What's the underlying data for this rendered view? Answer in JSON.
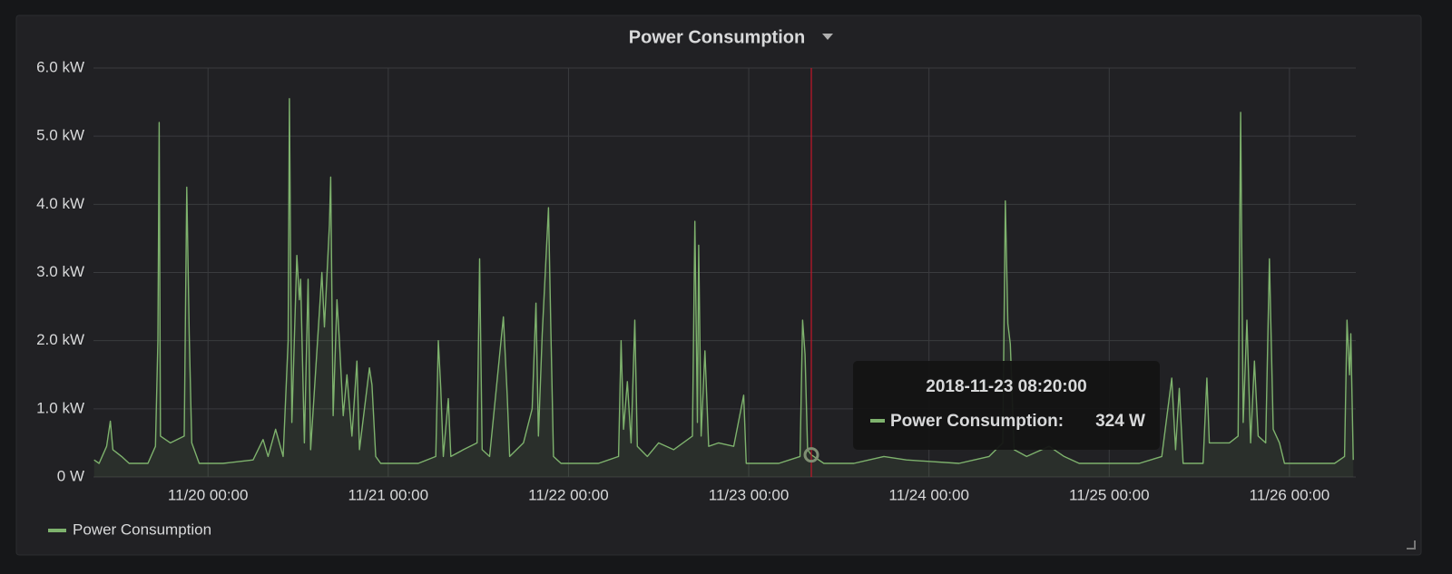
{
  "chart_data": {
    "type": "line",
    "title": "Power Consumption",
    "x": [
      "2018-11-19 08:50",
      "2018-11-19 09:30",
      "2018-11-19 10:30",
      "2018-11-19 11:00",
      "2018-11-19 11:20",
      "2018-11-19 12:30",
      "2018-11-19 13:30",
      "2018-11-19 16:00",
      "2018-11-19 17:00",
      "2018-11-19 17:20",
      "2018-11-19 17:30",
      "2018-11-19 17:40",
      "2018-11-19 19:00",
      "2018-11-19 20:50",
      "2018-11-19 21:10",
      "2018-11-19 21:30",
      "2018-11-19 21:50",
      "2018-11-19 22:50",
      "2018-11-20 02:00",
      "2018-11-20 06:00",
      "2018-11-20 07:20",
      "2018-11-20 08:00",
      "2018-11-20 09:00",
      "2018-11-20 10:00",
      "2018-11-20 10:40",
      "2018-11-20 10:50",
      "2018-11-20 11:10",
      "2018-11-20 11:50",
      "2018-11-20 12:10",
      "2018-11-20 12:20",
      "2018-11-20 12:50",
      "2018-11-20 13:20",
      "2018-11-20 13:40",
      "2018-11-20 15:10",
      "2018-11-20 15:30",
      "2018-11-20 16:10",
      "2018-11-20 16:20",
      "2018-11-20 16:40",
      "2018-11-20 17:10",
      "2018-11-20 17:30",
      "2018-11-20 18:00",
      "2018-11-20 18:30",
      "2018-11-20 19:10",
      "2018-11-20 19:50",
      "2018-11-20 20:10",
      "2018-11-20 21:30",
      "2018-11-20 21:50",
      "2018-11-20 22:20",
      "2018-11-20 23:00",
      "2018-11-21 04:00",
      "2018-11-21 06:20",
      "2018-11-21 06:40",
      "2018-11-21 07:00",
      "2018-11-21 07:20",
      "2018-11-21 08:00",
      "2018-11-21 08:20",
      "2018-11-21 10:00",
      "2018-11-21 11:50",
      "2018-11-21 12:10",
      "2018-11-21 12:30",
      "2018-11-21 13:30",
      "2018-11-21 15:20",
      "2018-11-21 15:50",
      "2018-11-21 16:10",
      "2018-11-21 18:00",
      "2018-11-21 19:10",
      "2018-11-21 19:40",
      "2018-11-21 20:00",
      "2018-11-21 20:30",
      "2018-11-21 21:20",
      "2018-11-21 21:40",
      "2018-11-21 22:00",
      "2018-11-21 23:00",
      "2018-11-22 04:00",
      "2018-11-22 06:40",
      "2018-11-22 07:00",
      "2018-11-22 07:20",
      "2018-11-22 07:50",
      "2018-11-22 08:20",
      "2018-11-22 08:50",
      "2018-11-22 09:10",
      "2018-11-22 10:30",
      "2018-11-22 12:00",
      "2018-11-22 14:00",
      "2018-11-22 16:30",
      "2018-11-22 16:50",
      "2018-11-22 17:10",
      "2018-11-22 17:20",
      "2018-11-22 17:40",
      "2018-11-22 18:10",
      "2018-11-22 18:40",
      "2018-11-22 20:00",
      "2018-11-22 22:00",
      "2018-11-22 23:20",
      "2018-11-22 23:40",
      "2018-11-23 04:00",
      "2018-11-23 06:50",
      "2018-11-23 07:10",
      "2018-11-23 07:30",
      "2018-11-23 07:50",
      "2018-11-23 08:20",
      "2018-11-23 10:00",
      "2018-11-23 14:00",
      "2018-11-23 18:00",
      "2018-11-23 21:00",
      "2018-11-24 04:00",
      "2018-11-24 08:00",
      "2018-11-24 09:50",
      "2018-11-24 10:10",
      "2018-11-24 10:30",
      "2018-11-24 10:50",
      "2018-11-24 11:20",
      "2018-11-24 13:00",
      "2018-11-24 16:00",
      "2018-11-24 18:00",
      "2018-11-24 20:00",
      "2018-11-25 04:00",
      "2018-11-25 07:00",
      "2018-11-25 08:20",
      "2018-11-25 08:50",
      "2018-11-25 09:20",
      "2018-11-25 09:50",
      "2018-11-25 12:30",
      "2018-11-25 13:00",
      "2018-11-25 13:20",
      "2018-11-25 16:00",
      "2018-11-25 17:10",
      "2018-11-25 17:30",
      "2018-11-25 17:50",
      "2018-11-25 18:20",
      "2018-11-25 18:50",
      "2018-11-25 19:20",
      "2018-11-25 19:50",
      "2018-11-25 20:50",
      "2018-11-25 21:20",
      "2018-11-25 21:50",
      "2018-11-25 22:40",
      "2018-11-25 23:20",
      "2018-11-26 03:00",
      "2018-11-26 06:00",
      "2018-11-26 07:20",
      "2018-11-26 07:40",
      "2018-11-26 08:00",
      "2018-11-26 08:10",
      "2018-11-26 08:30"
    ],
    "series": [
      {
        "name": "Power Consumption",
        "color": "#7eb26d",
        "values": [
          250,
          200,
          450,
          820,
          400,
          300,
          200,
          200,
          450,
          2000,
          5200,
          600,
          500,
          600,
          4250,
          2100,
          500,
          200,
          200,
          250,
          550,
          300,
          700,
          300,
          2000,
          5550,
          800,
          3250,
          2600,
          2900,
          500,
          2900,
          400,
          3000,
          2200,
          3700,
          4400,
          900,
          2600,
          2000,
          900,
          1500,
          600,
          1700,
          400,
          1600,
          1350,
          300,
          200,
          200,
          300,
          2000,
          1300,
          300,
          1150,
          300,
          400,
          500,
          3200,
          400,
          300,
          2350,
          1200,
          300,
          500,
          1000,
          2550,
          600,
          2100,
          3950,
          2100,
          300,
          200,
          200,
          300,
          2000,
          700,
          1400,
          500,
          2300,
          450,
          300,
          500,
          400,
          600,
          3750,
          800,
          3400,
          600,
          1850,
          450,
          500,
          450,
          1200,
          200,
          200,
          300,
          2300,
          1800,
          400,
          324,
          200,
          200,
          300,
          250,
          200,
          300,
          500,
          4050,
          2250,
          1950,
          400,
          300,
          450,
          300,
          200,
          200,
          300,
          1450,
          400,
          1300,
          200,
          200,
          1450,
          500,
          500,
          600,
          5350,
          800,
          2300,
          500,
          1700,
          600,
          500,
          3200,
          700,
          500,
          200,
          200,
          200,
          300,
          2300,
          1500,
          2100,
          250
        ]
      }
    ],
    "xlim": [
      "2018-11-19 08:45",
      "2018-11-26 08:50"
    ],
    "xticks": [
      {
        "value": "2018-11-20 00:00",
        "label": "11/20 00:00"
      },
      {
        "value": "2018-11-21 00:00",
        "label": "11/21 00:00"
      },
      {
        "value": "2018-11-22 00:00",
        "label": "11/22 00:00"
      },
      {
        "value": "2018-11-23 00:00",
        "label": "11/23 00:00"
      },
      {
        "value": "2018-11-24 00:00",
        "label": "11/24 00:00"
      },
      {
        "value": "2018-11-25 00:00",
        "label": "11/25 00:00"
      },
      {
        "value": "2018-11-26 00:00",
        "label": "11/26 00:00"
      }
    ],
    "ylim": [
      0,
      6000
    ],
    "yticks": [
      {
        "value": 0,
        "label": "0 W"
      },
      {
        "value": 1000,
        "label": "1.0 kW"
      },
      {
        "value": 2000,
        "label": "2.0 kW"
      },
      {
        "value": 3000,
        "label": "3.0 kW"
      },
      {
        "value": 4000,
        "label": "4.0 kW"
      },
      {
        "value": 5000,
        "label": "5.0 kW"
      },
      {
        "value": 6000,
        "label": "6.0 kW"
      }
    ],
    "grid": true,
    "legend": "bottom-left",
    "tooltip": {
      "time": "2018-11-23 08:20:00",
      "label": "Power Consumption:",
      "value": 324,
      "value_label": "324 W"
    }
  }
}
